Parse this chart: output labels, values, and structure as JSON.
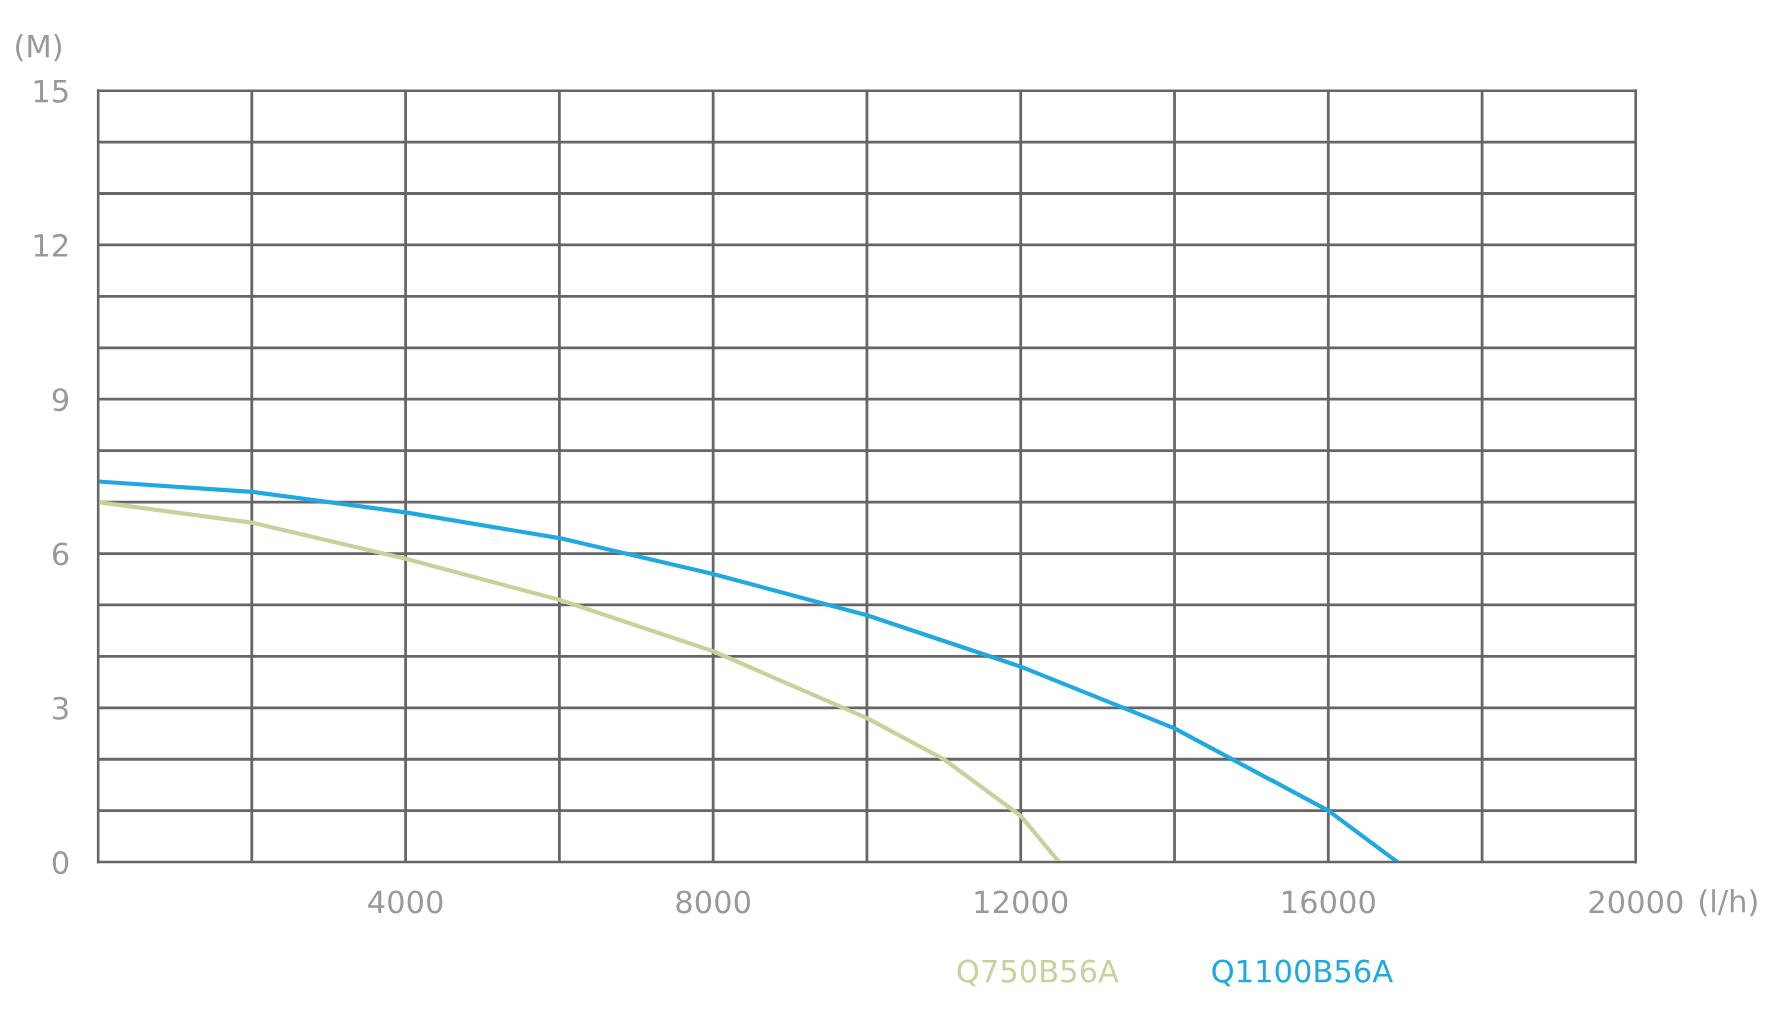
{
  "chart_data": {
    "type": "line",
    "xlabel": "(l/h)",
    "ylabel": "(M)",
    "xlim": [
      0,
      20000
    ],
    "xticks": [
      {
        "value": 0,
        "label": null
      },
      {
        "value": 2000,
        "label": null
      },
      4000,
      {
        "value": 6000,
        "label": null
      },
      8000,
      {
        "value": 10000,
        "label": null
      },
      12000,
      {
        "value": 14000,
        "label": null
      },
      16000,
      {
        "value": 18000,
        "label": null
      },
      20000
    ],
    "ylim": [
      0,
      15
    ],
    "yticks": [
      0,
      {
        "value": 1,
        "label": null
      },
      {
        "value": 2,
        "label": null
      },
      3,
      {
        "value": 4,
        "label": null
      },
      {
        "value": 5,
        "label": null
      },
      6,
      {
        "value": 7,
        "label": null
      },
      {
        "value": 8,
        "label": null
      },
      9,
      {
        "value": 10,
        "label": null
      },
      {
        "value": 11,
        "label": null
      },
      12,
      {
        "value": 13,
        "label": null
      },
      {
        "value": 14,
        "label": null
      },
      15
    ],
    "grid": true,
    "legend": "bottom",
    "marker": "none",
    "line_style": "solid",
    "series": [
      {
        "name": "Q750B56A",
        "color": "#c5d39a",
        "x": [
          0,
          2000,
          4000,
          6000,
          8000,
          10000,
          11000,
          12000,
          12500
        ],
        "values": [
          7.0,
          6.6,
          5.9,
          5.1,
          4.1,
          2.8,
          2.0,
          0.9,
          0
        ]
      },
      {
        "name": "Q1100B56A",
        "color": "#1fa9e0",
        "x": [
          0,
          2000,
          4000,
          6000,
          8000,
          10000,
          12000,
          14000,
          16000,
          16900
        ],
        "values": [
          7.4,
          7.2,
          6.8,
          6.3,
          5.6,
          4.8,
          3.8,
          2.6,
          1.0,
          0
        ]
      }
    ]
  }
}
